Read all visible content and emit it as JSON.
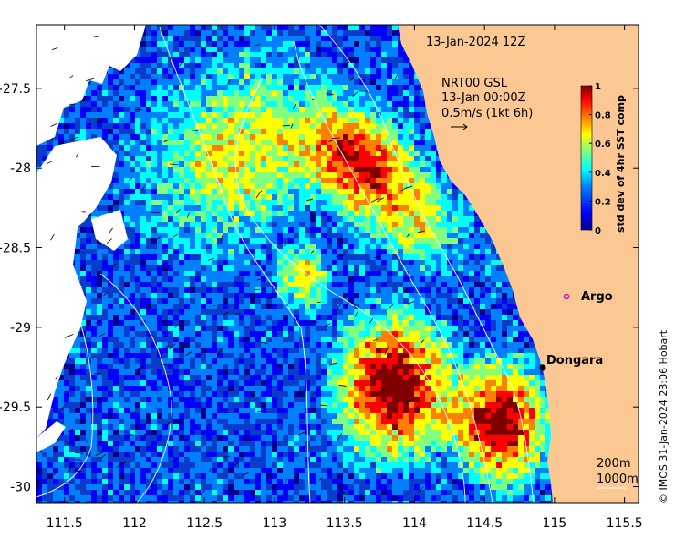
{
  "map": {
    "date_label": "13-Jan-2024 12Z",
    "current_source": "NRT00 GSL",
    "current_time": "13-Jan 00:00Z",
    "speed_scale": "0.5m/s (1kt 6h)",
    "depth_contour_a": "200m",
    "depth_contour_b": "1000m",
    "credit": "© IMOS 31-Jan-2024 23:06 Hobart",
    "places": [
      {
        "name": "Argo",
        "color": "#e000e0"
      },
      {
        "name": "Dongara",
        "color": "#000000"
      }
    ],
    "x_ticks": [
      "111.5",
      "112",
      "112.5",
      "113",
      "113.5",
      "114",
      "114.5",
      "115",
      "115.5"
    ],
    "y_ticks": [
      "-27.5",
      "-28",
      "-28.5",
      "-29",
      "-29.5",
      "-30"
    ],
    "x_tick_values": [
      111.5,
      112,
      112.5,
      113,
      113.5,
      114,
      114.5,
      115,
      115.5
    ],
    "y_tick_values": [
      -27.5,
      -28,
      -28.5,
      -29,
      -29.5,
      -30
    ],
    "lon_range": [
      111.3,
      115.6
    ],
    "lat_range": [
      -30.1,
      -27.1
    ],
    "colorbar": {
      "title": "std dev of 4hr SST comp",
      "ticks": [
        "0",
        "0.2",
        "0.4",
        "0.6",
        "0.8",
        "1"
      ],
      "colors": [
        "#00008f",
        "#0000ff",
        "#0080ff",
        "#00ffff",
        "#80ff80",
        "#ffff00",
        "#ff8000",
        "#ff0000",
        "#800000"
      ]
    },
    "land_color": "#fbc893",
    "cloud_color": "#ffffff"
  }
}
